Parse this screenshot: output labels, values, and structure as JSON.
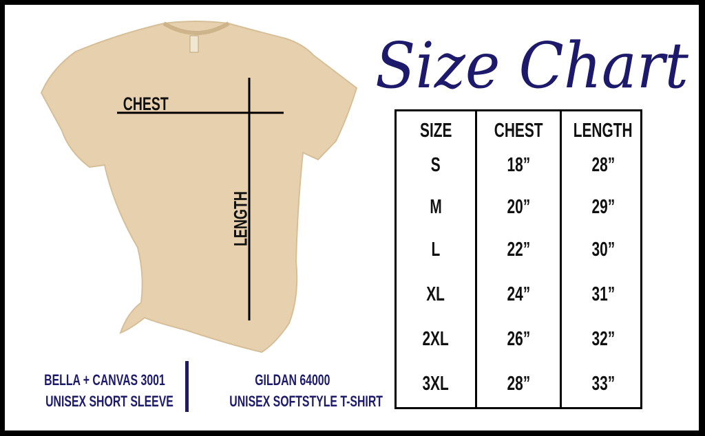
{
  "title": "Size Chart",
  "colors": {
    "accent": "#1d1a6b",
    "shirt": "#e6d0ad",
    "frame": "#000000"
  },
  "shirt": {
    "chest_label": "CHEST",
    "length_label": "LENGTH"
  },
  "table": {
    "headers": [
      "SIZE",
      "CHEST",
      "LENGTH"
    ],
    "rows": [
      [
        "S",
        "18”",
        "28”"
      ],
      [
        "M",
        "20”",
        "29”"
      ],
      [
        "L",
        "22”",
        "30”"
      ],
      [
        "XL",
        "24”",
        "31”"
      ],
      [
        "2XL",
        "26”",
        "32”"
      ],
      [
        "3XL",
        "28”",
        "33”"
      ]
    ]
  },
  "brands": [
    {
      "line1": "BELLA + CANVAS 3001",
      "line2": "UNISEX SHORT SLEEVE"
    },
    {
      "line1": "GILDAN 64000",
      "line2": "UNISEX SOFTSTYLE T-SHIRT"
    }
  ]
}
